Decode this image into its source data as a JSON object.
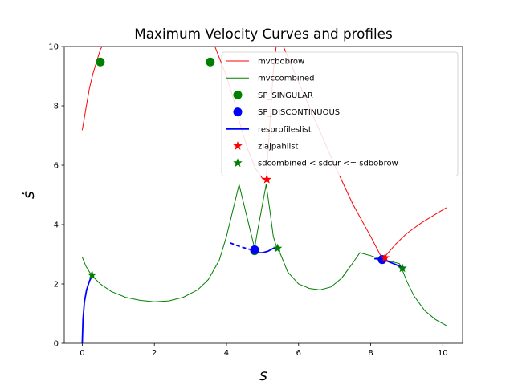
{
  "chart_data": {
    "type": "line",
    "title": "Maximum Velocity Curves and profiles",
    "xlabel": "s",
    "ylabel": "ṡ",
    "xlim": [
      -0.5,
      10.55
    ],
    "ylim": [
      0,
      10
    ],
    "x_ticks": [
      0,
      2,
      4,
      6,
      8,
      10
    ],
    "y_ticks": [
      0,
      2,
      4,
      6,
      8,
      10
    ],
    "x_tick_labels": [
      "0",
      "2",
      "4",
      "6",
      "8",
      "10"
    ],
    "y_tick_labels": [
      "0",
      "2",
      "4",
      "6",
      "8",
      "10"
    ],
    "grid": false,
    "legend_position": "upper right",
    "legend": [
      {
        "label": "mvcbobrow",
        "kind": "line",
        "color": "#ff0000",
        "width": 1
      },
      {
        "label": "mvccombined",
        "kind": "line",
        "color": "#008000",
        "width": 1
      },
      {
        "label": "SP_SINGULAR",
        "kind": "circle",
        "color": "#008000"
      },
      {
        "label": "SP_DISCONTINUOUS",
        "kind": "circle",
        "color": "#0000ff"
      },
      {
        "label": "resprofileslist",
        "kind": "line",
        "color": "#0000ff",
        "width": 1.8
      },
      {
        "label": "zlajpahlist",
        "kind": "star",
        "color": "#ff0000"
      },
      {
        "label": "sdcombined < sdcur <= sdbobrow",
        "kind": "star",
        "color": "#008000"
      }
    ],
    "series": [
      {
        "name": "mvcbobrow",
        "style": "line",
        "color": "#ff0000",
        "width": 1,
        "segments": [
          [
            [
              0.0,
              7.18
            ],
            [
              0.1,
              7.9
            ],
            [
              0.2,
              8.6
            ],
            [
              0.3,
              9.1
            ],
            [
              0.4,
              9.5
            ],
            [
              0.5,
              9.9
            ],
            [
              0.55,
              10.0
            ]
          ],
          [
            [
              3.68,
              10.0
            ],
            [
              4.0,
              9.0
            ],
            [
              4.2,
              8.2
            ],
            [
              4.4,
              7.3
            ],
            [
              4.6,
              6.5
            ],
            [
              4.8,
              5.9
            ],
            [
              5.0,
              5.55
            ],
            [
              5.1,
              5.5
            ],
            [
              5.3,
              9.2
            ],
            [
              5.38,
              10.0
            ]
          ],
          [
            [
              5.58,
              10.0
            ],
            [
              6.0,
              8.8
            ],
            [
              6.5,
              7.4
            ],
            [
              7.0,
              6.0
            ],
            [
              7.5,
              4.7
            ],
            [
              8.0,
              3.6
            ],
            [
              8.3,
              2.9
            ],
            [
              8.35,
              2.82
            ]
          ],
          [
            [
              8.35,
              2.82
            ],
            [
              8.45,
              3.0
            ],
            [
              8.7,
              3.35
            ],
            [
              9.0,
              3.7
            ],
            [
              9.4,
              4.05
            ],
            [
              9.8,
              4.35
            ],
            [
              10.1,
              4.57
            ]
          ]
        ]
      },
      {
        "name": "mvccombined",
        "style": "line",
        "color": "#008000",
        "width": 1,
        "segments": [
          [
            [
              0.0,
              2.9
            ],
            [
              0.1,
              2.6
            ],
            [
              0.25,
              2.3
            ],
            [
              0.5,
              2.0
            ],
            [
              0.8,
              1.75
            ],
            [
              1.2,
              1.55
            ],
            [
              1.6,
              1.45
            ],
            [
              2.0,
              1.4
            ],
            [
              2.4,
              1.43
            ],
            [
              2.8,
              1.55
            ],
            [
              3.2,
              1.8
            ],
            [
              3.5,
              2.15
            ],
            [
              3.8,
              2.8
            ],
            [
              4.0,
              3.6
            ],
            [
              4.2,
              4.6
            ],
            [
              4.35,
              5.35
            ],
            [
              4.5,
              4.6
            ],
            [
              4.7,
              3.6
            ],
            [
              4.78,
              3.2
            ],
            [
              4.85,
              3.7
            ],
            [
              5.0,
              4.7
            ],
            [
              5.1,
              5.35
            ],
            [
              5.2,
              4.5
            ],
            [
              5.3,
              3.6
            ],
            [
              5.4,
              3.2
            ],
            [
              5.5,
              3.0
            ],
            [
              5.7,
              2.4
            ],
            [
              6.0,
              2.0
            ],
            [
              6.3,
              1.85
            ],
            [
              6.6,
              1.8
            ],
            [
              6.9,
              1.9
            ],
            [
              7.2,
              2.2
            ],
            [
              7.5,
              2.7
            ],
            [
              7.7,
              3.05
            ],
            [
              8.0,
              2.95
            ],
            [
              8.3,
              2.83
            ],
            [
              8.6,
              2.75
            ],
            [
              8.8,
              2.68
            ],
            [
              8.85,
              2.55
            ],
            [
              9.0,
              2.1
            ],
            [
              9.2,
              1.6
            ],
            [
              9.5,
              1.1
            ],
            [
              9.8,
              0.8
            ],
            [
              10.1,
              0.6
            ]
          ]
        ]
      },
      {
        "name": "resprofileslist",
        "style": "line",
        "color": "#0000ff",
        "width": 1.8,
        "segments": [
          [
            [
              0.0,
              0.0
            ],
            [
              0.02,
              0.8
            ],
            [
              0.06,
              1.4
            ],
            [
              0.12,
              1.8
            ],
            [
              0.2,
              2.1
            ],
            [
              0.28,
              2.3
            ]
          ],
          [
            [
              4.78,
              3.15
            ],
            [
              4.9,
              3.05
            ],
            [
              5.0,
              3.05
            ],
            [
              5.15,
              3.1
            ],
            [
              5.3,
              3.2
            ],
            [
              5.38,
              3.2
            ]
          ],
          [
            [
              8.35,
              2.82
            ],
            [
              8.5,
              2.75
            ],
            [
              8.7,
              2.65
            ],
            [
              8.88,
              2.55
            ]
          ]
        ],
        "dashed_segments": [
          [
            [
              4.1,
              3.38
            ],
            [
              4.4,
              3.25
            ],
            [
              4.78,
              3.12
            ]
          ],
          [
            [
              8.1,
              2.85
            ],
            [
              8.35,
              2.82
            ]
          ]
        ]
      }
    ],
    "markers": {
      "SP_SINGULAR": [
        [
          0.5,
          9.48
        ],
        [
          3.55,
          9.48
        ],
        [
          4.78,
          3.12
        ],
        [
          8.32,
          2.82
        ]
      ],
      "SP_DISCONTINUOUS": [
        [
          4.78,
          3.15
        ],
        [
          8.32,
          2.82
        ]
      ],
      "zlajpahlist": [
        [
          5.12,
          5.52
        ],
        [
          8.4,
          2.88
        ]
      ],
      "sdcombined < sdcur <= sdbobrow": [
        [
          0.27,
          2.3
        ],
        [
          5.42,
          3.2
        ],
        [
          8.88,
          2.53
        ]
      ]
    }
  }
}
